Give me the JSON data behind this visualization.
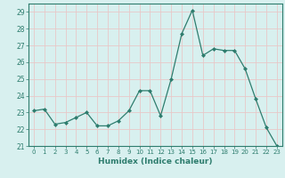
{
  "x": [
    0,
    1,
    2,
    3,
    4,
    5,
    6,
    7,
    8,
    9,
    10,
    11,
    12,
    13,
    14,
    15,
    16,
    17,
    18,
    19,
    20,
    21,
    22,
    23
  ],
  "y": [
    23.1,
    23.2,
    22.3,
    22.4,
    22.7,
    23.0,
    22.2,
    22.2,
    22.5,
    23.1,
    24.3,
    24.3,
    22.8,
    25.0,
    27.7,
    29.1,
    26.4,
    26.8,
    26.7,
    26.7,
    25.6,
    23.8,
    22.1,
    21.0
  ],
  "line_color": "#2e7d6e",
  "marker": "D",
  "marker_size": 2,
  "bg_color": "#d8f0ef",
  "grid_color": "#c8dedd",
  "tick_color": "#2e7d6e",
  "xlabel": "Humidex (Indice chaleur)",
  "ylim": [
    21,
    29.5
  ],
  "xlim": [
    -0.5,
    23.5
  ],
  "yticks": [
    21,
    22,
    23,
    24,
    25,
    26,
    27,
    28,
    29
  ],
  "xticks": [
    0,
    1,
    2,
    3,
    4,
    5,
    6,
    7,
    8,
    9,
    10,
    11,
    12,
    13,
    14,
    15,
    16,
    17,
    18,
    19,
    20,
    21,
    22,
    23
  ]
}
